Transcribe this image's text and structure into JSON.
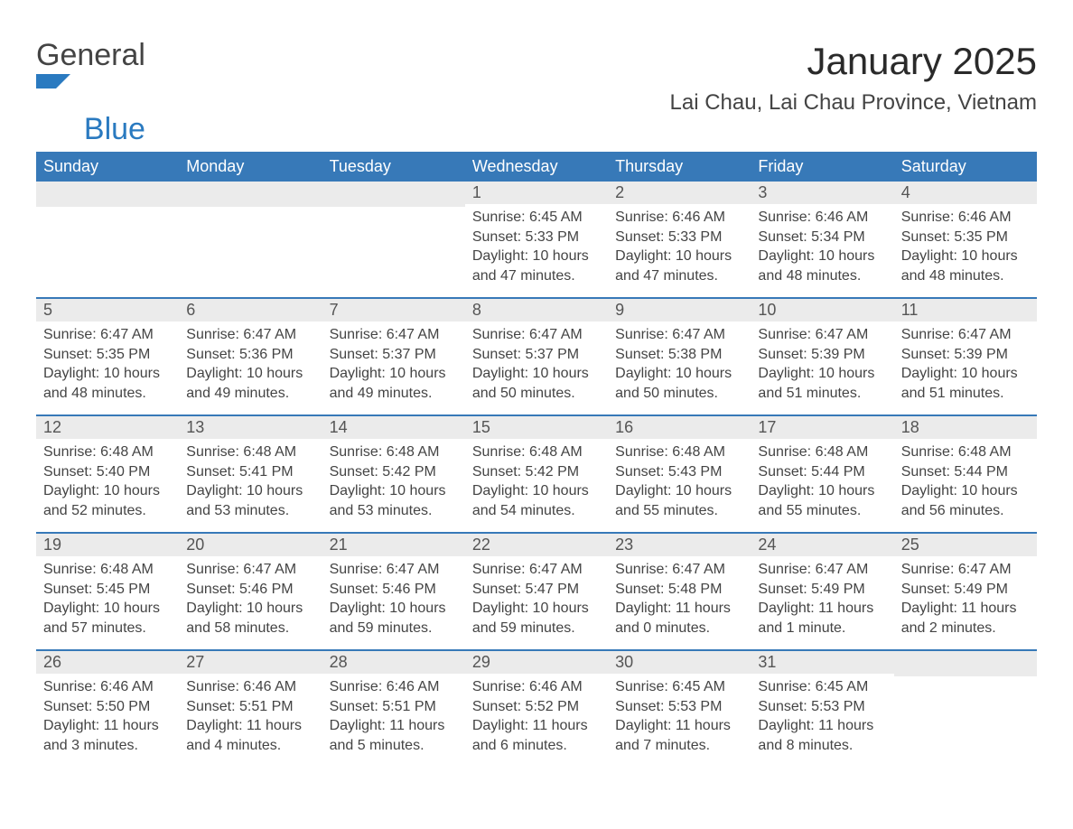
{
  "logo": {
    "word1": "General",
    "word2": "Blue",
    "accent_color": "#2a7ac0"
  },
  "title": "January 2025",
  "subtitle": "Lai Chau, Lai Chau Province, Vietnam",
  "weekday_headers": [
    "Sunday",
    "Monday",
    "Tuesday",
    "Wednesday",
    "Thursday",
    "Friday",
    "Saturday"
  ],
  "colors": {
    "header_bg": "#3779b8",
    "header_text": "#ffffff",
    "daynum_bg": "#ebebeb",
    "daynum_text": "#555555",
    "body_text": "#444444",
    "rule": "#3779b8",
    "page_bg": "#ffffff"
  },
  "layout": {
    "columns": 7,
    "title_fontsize": 42,
    "subtitle_fontsize": 24,
    "weekday_fontsize": 18,
    "daynum_fontsize": 18,
    "content_fontsize": 16
  },
  "weeks": [
    [
      null,
      null,
      null,
      {
        "n": "1",
        "sunrise": "Sunrise: 6:45 AM",
        "sunset": "Sunset: 5:33 PM",
        "daylight": "Daylight: 10 hours and 47 minutes."
      },
      {
        "n": "2",
        "sunrise": "Sunrise: 6:46 AM",
        "sunset": "Sunset: 5:33 PM",
        "daylight": "Daylight: 10 hours and 47 minutes."
      },
      {
        "n": "3",
        "sunrise": "Sunrise: 6:46 AM",
        "sunset": "Sunset: 5:34 PM",
        "daylight": "Daylight: 10 hours and 48 minutes."
      },
      {
        "n": "4",
        "sunrise": "Sunrise: 6:46 AM",
        "sunset": "Sunset: 5:35 PM",
        "daylight": "Daylight: 10 hours and 48 minutes."
      }
    ],
    [
      {
        "n": "5",
        "sunrise": "Sunrise: 6:47 AM",
        "sunset": "Sunset: 5:35 PM",
        "daylight": "Daylight: 10 hours and 48 minutes."
      },
      {
        "n": "6",
        "sunrise": "Sunrise: 6:47 AM",
        "sunset": "Sunset: 5:36 PM",
        "daylight": "Daylight: 10 hours and 49 minutes."
      },
      {
        "n": "7",
        "sunrise": "Sunrise: 6:47 AM",
        "sunset": "Sunset: 5:37 PM",
        "daylight": "Daylight: 10 hours and 49 minutes."
      },
      {
        "n": "8",
        "sunrise": "Sunrise: 6:47 AM",
        "sunset": "Sunset: 5:37 PM",
        "daylight": "Daylight: 10 hours and 50 minutes."
      },
      {
        "n": "9",
        "sunrise": "Sunrise: 6:47 AM",
        "sunset": "Sunset: 5:38 PM",
        "daylight": "Daylight: 10 hours and 50 minutes."
      },
      {
        "n": "10",
        "sunrise": "Sunrise: 6:47 AM",
        "sunset": "Sunset: 5:39 PM",
        "daylight": "Daylight: 10 hours and 51 minutes."
      },
      {
        "n": "11",
        "sunrise": "Sunrise: 6:47 AM",
        "sunset": "Sunset: 5:39 PM",
        "daylight": "Daylight: 10 hours and 51 minutes."
      }
    ],
    [
      {
        "n": "12",
        "sunrise": "Sunrise: 6:48 AM",
        "sunset": "Sunset: 5:40 PM",
        "daylight": "Daylight: 10 hours and 52 minutes."
      },
      {
        "n": "13",
        "sunrise": "Sunrise: 6:48 AM",
        "sunset": "Sunset: 5:41 PM",
        "daylight": "Daylight: 10 hours and 53 minutes."
      },
      {
        "n": "14",
        "sunrise": "Sunrise: 6:48 AM",
        "sunset": "Sunset: 5:42 PM",
        "daylight": "Daylight: 10 hours and 53 minutes."
      },
      {
        "n": "15",
        "sunrise": "Sunrise: 6:48 AM",
        "sunset": "Sunset: 5:42 PM",
        "daylight": "Daylight: 10 hours and 54 minutes."
      },
      {
        "n": "16",
        "sunrise": "Sunrise: 6:48 AM",
        "sunset": "Sunset: 5:43 PM",
        "daylight": "Daylight: 10 hours and 55 minutes."
      },
      {
        "n": "17",
        "sunrise": "Sunrise: 6:48 AM",
        "sunset": "Sunset: 5:44 PM",
        "daylight": "Daylight: 10 hours and 55 minutes."
      },
      {
        "n": "18",
        "sunrise": "Sunrise: 6:48 AM",
        "sunset": "Sunset: 5:44 PM",
        "daylight": "Daylight: 10 hours and 56 minutes."
      }
    ],
    [
      {
        "n": "19",
        "sunrise": "Sunrise: 6:48 AM",
        "sunset": "Sunset: 5:45 PM",
        "daylight": "Daylight: 10 hours and 57 minutes."
      },
      {
        "n": "20",
        "sunrise": "Sunrise: 6:47 AM",
        "sunset": "Sunset: 5:46 PM",
        "daylight": "Daylight: 10 hours and 58 minutes."
      },
      {
        "n": "21",
        "sunrise": "Sunrise: 6:47 AM",
        "sunset": "Sunset: 5:46 PM",
        "daylight": "Daylight: 10 hours and 59 minutes."
      },
      {
        "n": "22",
        "sunrise": "Sunrise: 6:47 AM",
        "sunset": "Sunset: 5:47 PM",
        "daylight": "Daylight: 10 hours and 59 minutes."
      },
      {
        "n": "23",
        "sunrise": "Sunrise: 6:47 AM",
        "sunset": "Sunset: 5:48 PM",
        "daylight": "Daylight: 11 hours and 0 minutes."
      },
      {
        "n": "24",
        "sunrise": "Sunrise: 6:47 AM",
        "sunset": "Sunset: 5:49 PM",
        "daylight": "Daylight: 11 hours and 1 minute."
      },
      {
        "n": "25",
        "sunrise": "Sunrise: 6:47 AM",
        "sunset": "Sunset: 5:49 PM",
        "daylight": "Daylight: 11 hours and 2 minutes."
      }
    ],
    [
      {
        "n": "26",
        "sunrise": "Sunrise: 6:46 AM",
        "sunset": "Sunset: 5:50 PM",
        "daylight": "Daylight: 11 hours and 3 minutes."
      },
      {
        "n": "27",
        "sunrise": "Sunrise: 6:46 AM",
        "sunset": "Sunset: 5:51 PM",
        "daylight": "Daylight: 11 hours and 4 minutes."
      },
      {
        "n": "28",
        "sunrise": "Sunrise: 6:46 AM",
        "sunset": "Sunset: 5:51 PM",
        "daylight": "Daylight: 11 hours and 5 minutes."
      },
      {
        "n": "29",
        "sunrise": "Sunrise: 6:46 AM",
        "sunset": "Sunset: 5:52 PM",
        "daylight": "Daylight: 11 hours and 6 minutes."
      },
      {
        "n": "30",
        "sunrise": "Sunrise: 6:45 AM",
        "sunset": "Sunset: 5:53 PM",
        "daylight": "Daylight: 11 hours and 7 minutes."
      },
      {
        "n": "31",
        "sunrise": "Sunrise: 6:45 AM",
        "sunset": "Sunset: 5:53 PM",
        "daylight": "Daylight: 11 hours and 8 minutes."
      },
      null
    ]
  ]
}
